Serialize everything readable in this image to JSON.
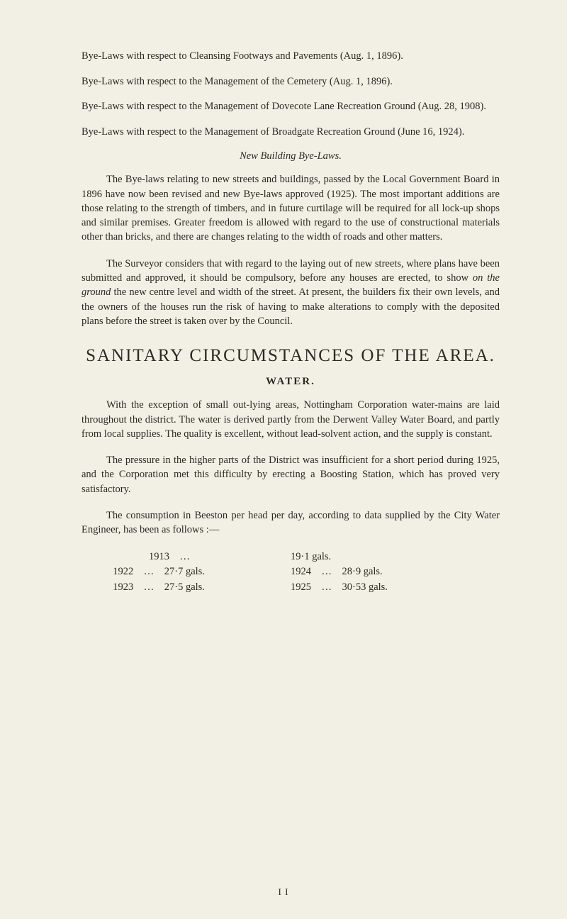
{
  "byeLaws": [
    {
      "text": "Bye-Laws with respect to Cleansing Footways and Pavements (Aug. 1, 1896)."
    },
    {
      "text": "Bye-Laws with respect to the Management of the Cemetery (Aug. 1, 1896)."
    },
    {
      "text": "Bye-Laws with respect to the Management of Dovecote Lane Recreation Ground (Aug. 28, 1908)."
    },
    {
      "text": "Bye-Laws with respect to the Management of Broadgate Recreation Ground (June 16, 1924)."
    }
  ],
  "italicHeading": "New Building Bye-Laws.",
  "para1": "The Bye-laws relating to new streets and buildings, passed by the Local Government Board in 1896 have now been revised and new Bye-laws approved (1925). The most important additions are those relating to the strength of timbers, and in future curtilage will be required for all lock-up shops and similar premises. Greater freedom is allowed with regard to the use of constructional materials other than bricks, and there are changes relating to the width of roads and other matters.",
  "para2_pre": "The Surveyor considers that with regard to the laying out of new streets, where plans have been submitted and approved, it should be compulsory, before any houses are erected, to show ",
  "para2_em": "on the ground",
  "para2_post": " the new centre level and width of the street. At present, the builders fix their own levels, and the owners of the houses run the risk of having to make alterations to comply with the deposited plans before the street is taken over by the Council.",
  "mainHeading": "SANITARY CIRCUMSTANCES OF THE AREA.",
  "subHeading": "WATER.",
  "para3": "With the exception of small out-lying areas, Nottingham Cor­poration water-mains are laid throughout the district. The water is derived partly from the Derwent Valley Water Board, and partly from local supplies. The quality is excellent, without lead-solvent action, and the supply is constant.",
  "para4": "The pressure in the higher parts of the District was insufficient for a short period during 1925, and the Corporation met this difficulty by erecting a Boosting Station, which has proved very satisfactory.",
  "para5": "The consumption in Beeston per head per day, according to data supplied by the City Water Engineer, has been as follows :—",
  "dataRows": [
    {
      "left": "              1913    …",
      "right": "19·1 gals."
    },
    {
      "left": "1922    …    27·7 gals.",
      "right": "1924    …    28·9 gals."
    },
    {
      "left": "1923    …    27·5 gals.",
      "right": "1925    …    30·53 gals."
    }
  ],
  "pageNum": "I I"
}
